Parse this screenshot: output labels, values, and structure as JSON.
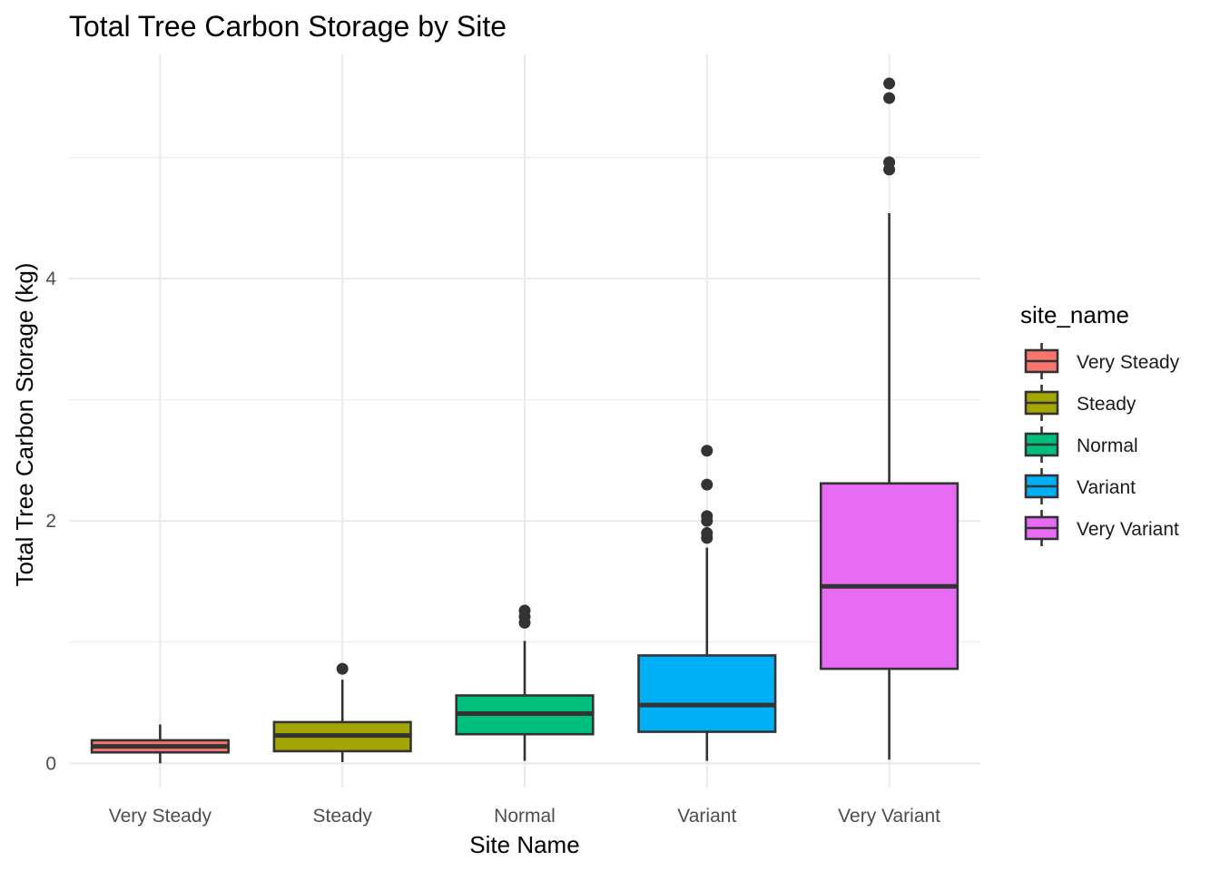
{
  "chart_data": {
    "type": "box",
    "title": "Total Tree Carbon Storage by Site",
    "xlabel": "Site Name",
    "ylabel": "Total Tree Carbon Storage (kg)",
    "ylim": [
      -0.2,
      5.85
    ],
    "yticks": [
      0,
      2,
      4
    ],
    "grid": true,
    "categories": [
      "Very Steady",
      "Steady",
      "Normal",
      "Variant",
      "Very Variant"
    ],
    "legend": {
      "title": "site_name",
      "position": "right",
      "entries": [
        "Very Steady",
        "Steady",
        "Normal",
        "Variant",
        "Very Variant"
      ]
    },
    "colors": [
      "#F8766D",
      "#A3A500",
      "#00BF7D",
      "#00B0F6",
      "#E76BF3"
    ],
    "series": [
      {
        "category": "Very Steady",
        "min": 0.0,
        "q1": 0.09,
        "median": 0.14,
        "q3": 0.19,
        "max": 0.32,
        "outliers": []
      },
      {
        "category": "Steady",
        "min": 0.01,
        "q1": 0.1,
        "median": 0.23,
        "q3": 0.34,
        "max": 0.69,
        "outliers": [
          0.78
        ]
      },
      {
        "category": "Normal",
        "min": 0.02,
        "q1": 0.24,
        "median": 0.41,
        "q3": 0.56,
        "max": 1.01,
        "outliers": [
          1.16,
          1.21,
          1.26
        ]
      },
      {
        "category": "Variant",
        "min": 0.02,
        "q1": 0.26,
        "median": 0.48,
        "q3": 0.89,
        "max": 1.78,
        "outliers": [
          1.86,
          1.9,
          2.0,
          2.04,
          2.3,
          2.58
        ]
      },
      {
        "category": "Very Variant",
        "min": 0.03,
        "q1": 0.78,
        "median": 1.46,
        "q3": 2.31,
        "max": 4.54,
        "outliers": [
          4.9,
          4.96,
          5.49,
          5.61
        ]
      }
    ]
  }
}
